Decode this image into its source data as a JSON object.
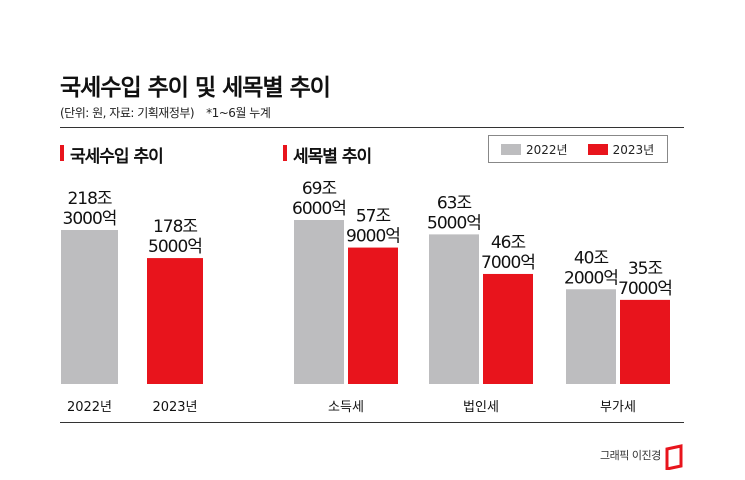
{
  "header": {
    "title": "국세수입 추이 및 세목별 추이",
    "subtitle": "(단위: 원, 자료: 기획재정부)",
    "note": "*1~6월 누계"
  },
  "left_section": {
    "title": "국세수입 추이"
  },
  "right_section": {
    "title": "세목별 추이"
  },
  "legend": {
    "items": [
      "2022년",
      "2023년"
    ]
  },
  "colors": {
    "y2022": "#bdbdbf",
    "y2023": "#e8141c",
    "accent": "#e8141c"
  },
  "credit": "그래픽 이진경",
  "chart_data": [
    {
      "type": "bar",
      "categories": [
        "2022년",
        "2023년"
      ],
      "values": [
        2183000,
        1785000
      ],
      "unit": "억원",
      "data_labels": [
        [
          "218조",
          "3000억"
        ],
        [
          "178조",
          "5000억"
        ]
      ]
    },
    {
      "type": "bar",
      "categories": [
        "소득세",
        "법인세",
        "부가세"
      ],
      "series": [
        {
          "name": "2022년",
          "values": [
            696000,
            635000,
            402000
          ],
          "data_labels": [
            [
              "69조",
              "6000억"
            ],
            [
              "63조",
              "5000억"
            ],
            [
              "40조",
              "2000억"
            ]
          ]
        },
        {
          "name": "2023년",
          "values": [
            579000,
            467000,
            357000
          ],
          "data_labels": [
            [
              "57조",
              "9000억"
            ],
            [
              "46조",
              "7000억"
            ],
            [
              "35조",
              "7000억"
            ]
          ]
        }
      ],
      "unit": "억원"
    }
  ]
}
